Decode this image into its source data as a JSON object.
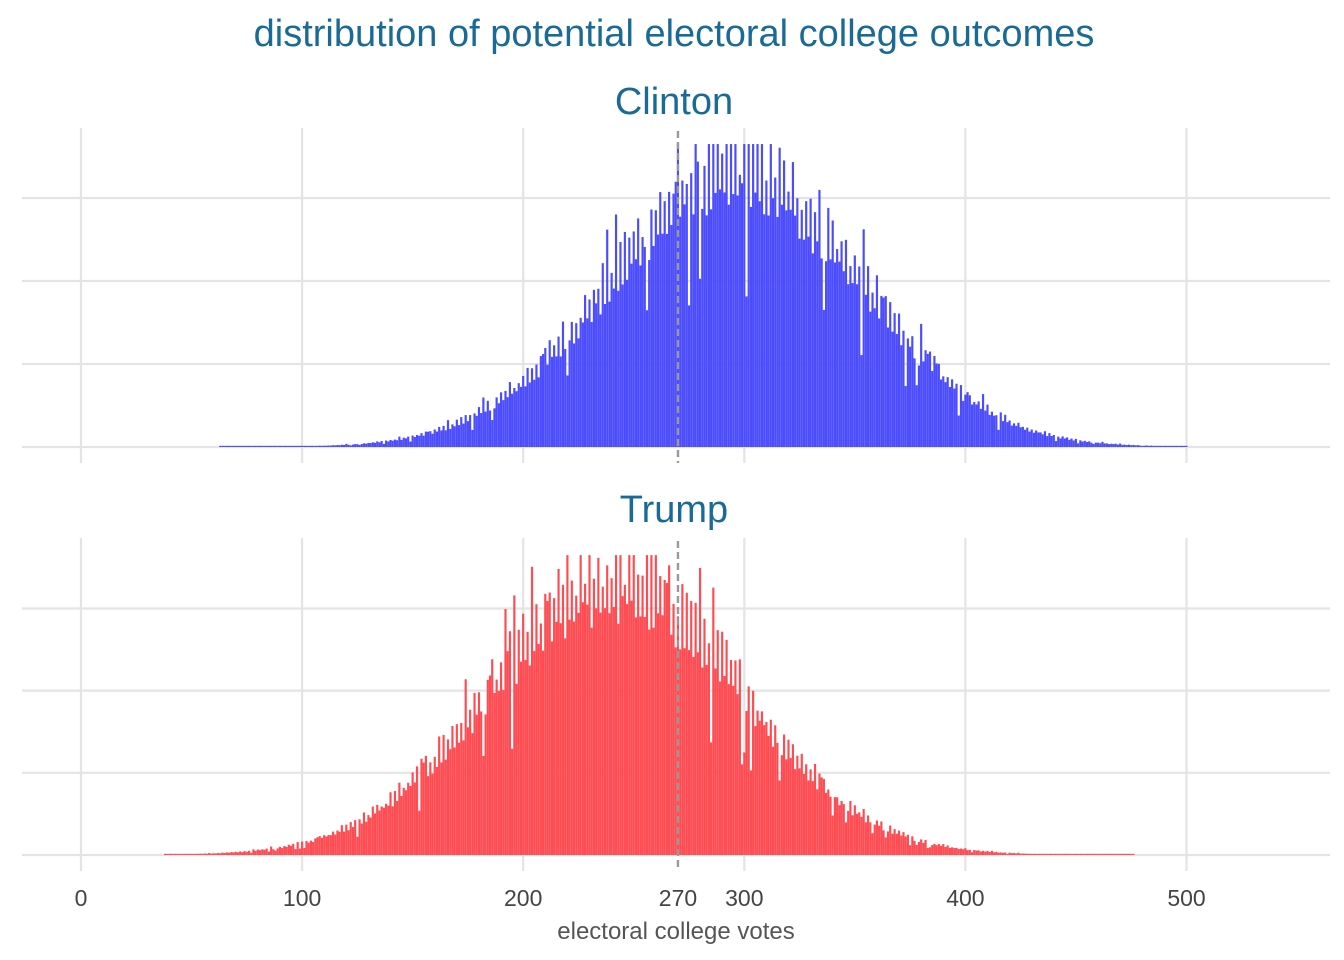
{
  "chart_data": {
    "type": "histogram",
    "title": "distribution of potential electoral college outcomes",
    "xlabel": "electoral college votes",
    "ylabel": "",
    "xlim": [
      -12,
      566
    ],
    "x_ticks": [
      0,
      100,
      200,
      270,
      300,
      400,
      500
    ],
    "y_tick_labels_shown": false,
    "grid": true,
    "reference_line": {
      "x": 270,
      "style": "dashed",
      "color": "#999999"
    },
    "title_color": "#1a6a96",
    "panels": [
      {
        "name": "Clinton",
        "color": "#4c4cff",
        "distribution": {
          "center": 296,
          "sd": 57,
          "range": [
            63,
            500
          ]
        },
        "ylim": [
          0,
          1
        ],
        "relative_peak": 0.93
      },
      {
        "name": "Trump",
        "color": "#ff4c52",
        "distribution": {
          "center": 242,
          "sd": 57,
          "range": [
            38,
            476
          ]
        },
        "ylim": [
          0,
          1
        ],
        "relative_peak": 0.93
      }
    ]
  }
}
